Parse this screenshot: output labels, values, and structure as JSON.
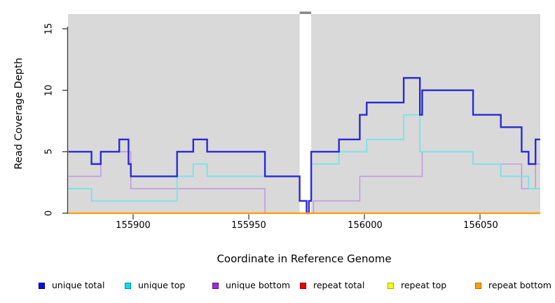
{
  "chart_data": {
    "type": "line",
    "step": true,
    "xlabel": "Coordinate in Reference Genome",
    "ylabel": "Read Coverage Depth",
    "xlim": [
      155872,
      156076
    ],
    "ylim": [
      0,
      16.2
    ],
    "xticks": [
      155900,
      155950,
      156000,
      156050
    ],
    "yticks": [
      0,
      5,
      10,
      15
    ],
    "grid": false,
    "legend_position": "bottom",
    "plot_background": "#d9d9d9",
    "mask_region": {
      "x_start": 155972,
      "x_end": 155977,
      "fill": "#ffffff",
      "cap_color": "#888888"
    },
    "series": [
      {
        "name": "unique total",
        "color": "#2a2ad2",
        "width": 2.4,
        "points": [
          [
            155872,
            5
          ],
          [
            155882,
            4
          ],
          [
            155886,
            5
          ],
          [
            155894,
            6
          ],
          [
            155898,
            4
          ],
          [
            155899,
            3
          ],
          [
            155919,
            5
          ],
          [
            155926,
            6
          ],
          [
            155932,
            5
          ],
          [
            155957,
            3
          ],
          [
            155972,
            1
          ],
          [
            155975,
            0
          ],
          [
            155976,
            1
          ],
          [
            155977,
            5
          ],
          [
            155989,
            6
          ],
          [
            155998,
            8
          ],
          [
            156001,
            9
          ],
          [
            156017,
            11
          ],
          [
            156024,
            8
          ],
          [
            156025,
            10
          ],
          [
            156047,
            8
          ],
          [
            156059,
            7
          ],
          [
            156068,
            5
          ],
          [
            156071,
            4
          ],
          [
            156074,
            6
          ]
        ]
      },
      {
        "name": "unique top",
        "color": "#74e4ea",
        "width": 1.8,
        "points": [
          [
            155872,
            2
          ],
          [
            155882,
            1
          ],
          [
            155919,
            3
          ],
          [
            155926,
            4
          ],
          [
            155932,
            3
          ],
          [
            155972,
            1
          ],
          [
            155975,
            0
          ],
          [
            155976,
            1
          ],
          [
            155977,
            4
          ],
          [
            155989,
            5
          ],
          [
            156001,
            6
          ],
          [
            156017,
            8
          ],
          [
            156024,
            5
          ],
          [
            156047,
            4
          ],
          [
            156059,
            3
          ],
          [
            156071,
            2
          ]
        ]
      },
      {
        "name": "unique bottom",
        "color": "#c49ade",
        "width": 1.6,
        "points": [
          [
            155872,
            3
          ],
          [
            155886,
            5
          ],
          [
            155899,
            2
          ],
          [
            155957,
            0
          ],
          [
            155978,
            1
          ],
          [
            155998,
            3
          ],
          [
            156025,
            5
          ],
          [
            156047,
            4
          ],
          [
            156068,
            2
          ],
          [
            156074,
            4
          ]
        ]
      },
      {
        "name": "repeat total",
        "color": "#e60000",
        "width": 1.5,
        "points": [
          [
            155872,
            0
          ]
        ]
      },
      {
        "name": "repeat top",
        "color": "#ffff00",
        "width": 1.5,
        "points": [
          [
            155872,
            0
          ]
        ]
      },
      {
        "name": "repeat bottom",
        "color": "#ff9c00",
        "width": 2.2,
        "points": [
          [
            155872,
            0
          ]
        ]
      }
    ]
  },
  "legend": {
    "items": [
      {
        "label": "unique total",
        "color": "#0d0df0",
        "border": "#000080"
      },
      {
        "label": "unique top",
        "color": "#00e5ee",
        "border": "#008b96"
      },
      {
        "label": "unique bottom",
        "color": "#9d2ae0",
        "border": "#5c0e8a"
      },
      {
        "label": "repeat total",
        "color": "#f00000",
        "border": "#8e0000"
      },
      {
        "label": "repeat top",
        "color": "#ffff1a",
        "border": "#a8a800"
      },
      {
        "label": "repeat bottom",
        "color": "#ffa000",
        "border": "#b06800"
      }
    ]
  }
}
